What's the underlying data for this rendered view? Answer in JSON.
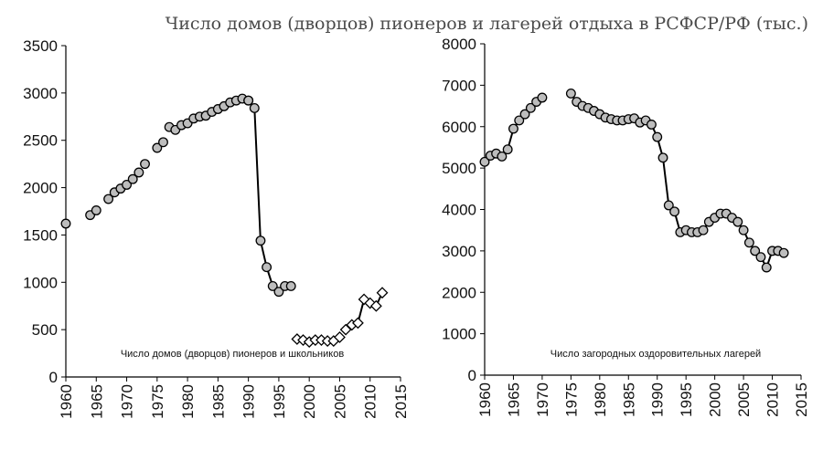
{
  "title": "Число домов (дворцов) пионеров и лагерей отдыха в РСФСР/РФ (тыс.)",
  "colors": {
    "marker_fill": "#bdbdbd",
    "marker_fill_open": "#ffffff",
    "stroke": "#000000",
    "text": "#111111"
  },
  "chart_data": [
    {
      "type": "line",
      "annotation": "Число домов (дворцов) пионеров и школьников",
      "xlim": [
        1960,
        2015
      ],
      "ylim": [
        0,
        3500
      ],
      "xticks": [
        1960,
        1965,
        1970,
        1975,
        1980,
        1985,
        1990,
        1995,
        2000,
        2005,
        2010,
        2015
      ],
      "yticks": [
        0,
        500,
        1000,
        1500,
        2000,
        2500,
        3000,
        3500
      ],
      "grid": false,
      "series": [
        {
          "marker": "circle",
          "connected": false,
          "points": [
            [
              1960,
              1620
            ],
            [
              1964,
              1710
            ],
            [
              1965,
              1760
            ],
            [
              1967,
              1880
            ],
            [
              1968,
              1950
            ],
            [
              1969,
              1990
            ],
            [
              1970,
              2030
            ],
            [
              1971,
              2090
            ],
            [
              1972,
              2160
            ],
            [
              1973,
              2250
            ],
            [
              1975,
              2420
            ],
            [
              1976,
              2480
            ],
            [
              1977,
              2640
            ],
            [
              1978,
              2610
            ],
            [
              1979,
              2660
            ],
            [
              1980,
              2680
            ],
            [
              1981,
              2730
            ],
            [
              1982,
              2750
            ],
            [
              1983,
              2760
            ],
            [
              1984,
              2800
            ],
            [
              1985,
              2830
            ],
            [
              1986,
              2860
            ],
            [
              1987,
              2900
            ],
            [
              1988,
              2920
            ],
            [
              1989,
              2940
            ],
            [
              1990,
              2920
            ]
          ]
        },
        {
          "marker": "circle",
          "connected": true,
          "points": [
            [
              1990,
              2920
            ],
            [
              1991,
              2840
            ],
            [
              1992,
              1440
            ],
            [
              1993,
              1160
            ],
            [
              1994,
              960
            ],
            [
              1995,
              900
            ],
            [
              1996,
              960
            ],
            [
              1997,
              960
            ]
          ]
        },
        {
          "marker": "diamond",
          "connected": false,
          "points": [
            [
              1998,
              400
            ],
            [
              1999,
              390
            ],
            [
              2000,
              370
            ],
            [
              2001,
              390
            ],
            [
              2002,
              390
            ],
            [
              2003,
              380
            ],
            [
              2004,
              380
            ],
            [
              2005,
              420
            ],
            [
              2006,
              500
            ],
            [
              2007,
              550
            ]
          ]
        },
        {
          "marker": "diamond",
          "connected": true,
          "points": [
            [
              2008,
              570
            ],
            [
              2009,
              820
            ],
            [
              2010,
              780
            ],
            [
              2011,
              750
            ],
            [
              2012,
              890
            ]
          ]
        }
      ]
    },
    {
      "type": "line",
      "annotation": "Число загородных оздоровительных лагерей",
      "xlim": [
        1960,
        2015
      ],
      "ylim": [
        0,
        8000
      ],
      "xticks": [
        1960,
        1965,
        1970,
        1975,
        1980,
        1985,
        1990,
        1995,
        2000,
        2005,
        2010,
        2015
      ],
      "yticks": [
        0,
        1000,
        2000,
        3000,
        4000,
        5000,
        6000,
        7000,
        8000
      ],
      "grid": false,
      "series": [
        {
          "marker": "circle",
          "connected": true,
          "points": [
            [
              1960,
              5150
            ],
            [
              1961,
              5300
            ],
            [
              1962,
              5350
            ],
            [
              1963,
              5280
            ],
            [
              1964,
              5450
            ],
            [
              1965,
              5950
            ],
            [
              1966,
              6150
            ],
            [
              1967,
              6300
            ],
            [
              1968,
              6450
            ],
            [
              1969,
              6600
            ],
            [
              1970,
              6700
            ]
          ]
        },
        {
          "marker": "circle",
          "connected": true,
          "points": [
            [
              1975,
              6800
            ],
            [
              1976,
              6600
            ],
            [
              1977,
              6500
            ],
            [
              1978,
              6450
            ],
            [
              1979,
              6380
            ],
            [
              1980,
              6300
            ],
            [
              1981,
              6220
            ],
            [
              1982,
              6180
            ],
            [
              1983,
              6150
            ],
            [
              1984,
              6150
            ],
            [
              1985,
              6180
            ],
            [
              1986,
              6200
            ],
            [
              1987,
              6100
            ],
            [
              1988,
              6150
            ],
            [
              1989,
              6050
            ],
            [
              1990,
              5750
            ],
            [
              1991,
              5250
            ],
            [
              1992,
              4100
            ],
            [
              1993,
              3950
            ],
            [
              1994,
              3450
            ],
            [
              1995,
              3500
            ],
            [
              1996,
              3450
            ],
            [
              1997,
              3450
            ],
            [
              1998,
              3500
            ],
            [
              1999,
              3700
            ],
            [
              2000,
              3800
            ],
            [
              2001,
              3900
            ],
            [
              2002,
              3900
            ],
            [
              2003,
              3800
            ],
            [
              2004,
              3700
            ],
            [
              2005,
              3500
            ],
            [
              2006,
              3200
            ],
            [
              2007,
              3000
            ],
            [
              2008,
              2850
            ],
            [
              2009,
              2600
            ],
            [
              2010,
              3000
            ],
            [
              2011,
              3000
            ],
            [
              2012,
              2950
            ]
          ]
        }
      ]
    }
  ]
}
